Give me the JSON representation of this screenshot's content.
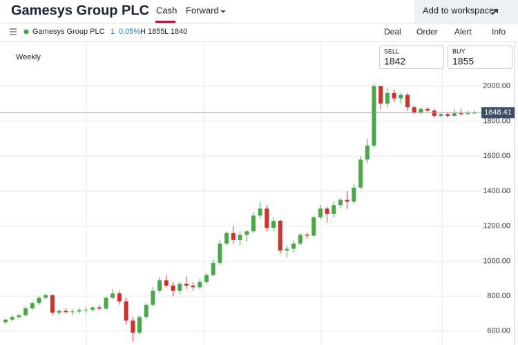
{
  "header": {
    "title": "Gamesys Group PLC",
    "tabs": [
      "Cash",
      "Forward"
    ],
    "workspace_button": "Add to workspace"
  },
  "toolbar": {
    "instrument": "Gamesys Group PLC",
    "change": "1",
    "change_pct": "0.05%",
    "high": "H 1855",
    "low": "L 1840",
    "actions": [
      "Deal",
      "Order",
      "Alert",
      "Info"
    ]
  },
  "quote": {
    "sell_label": "SELL",
    "sell": "1842",
    "buy_label": "BUY",
    "buy": "1855"
  },
  "chart_data": {
    "type": "candlestick",
    "interval": "Weekly",
    "up_color": "#4aa84a",
    "down_color": "#d0312d",
    "ylim": [
      540,
      2236
    ],
    "yticks": [
      {
        "value": 600,
        "label": "600.00"
      },
      {
        "value": 800,
        "label": "800.00"
      },
      {
        "value": 1000,
        "label": "1000.00"
      },
      {
        "value": 1200,
        "label": "1200.00"
      },
      {
        "value": 1400,
        "label": "1400.00"
      },
      {
        "value": 1600,
        "label": "1600.00"
      },
      {
        "value": 1800,
        "label": "1800.00"
      },
      {
        "value": 2000,
        "label": "2000.00"
      }
    ],
    "grid": true,
    "last_price": 1848.41,
    "ohlc": [
      [
        650,
        670,
        640,
        665
      ],
      [
        665,
        690,
        655,
        680
      ],
      [
        680,
        700,
        670,
        690
      ],
      [
        690,
        740,
        685,
        730
      ],
      [
        730,
        770,
        720,
        760
      ],
      [
        760,
        800,
        750,
        790
      ],
      [
        790,
        815,
        780,
        805
      ],
      [
        805,
        810,
        690,
        705
      ],
      [
        705,
        725,
        690,
        715
      ],
      [
        715,
        730,
        700,
        708
      ],
      [
        708,
        725,
        690,
        712
      ],
      [
        712,
        730,
        700,
        720
      ],
      [
        720,
        735,
        705,
        722
      ],
      [
        722,
        745,
        710,
        735
      ],
      [
        735,
        750,
        720,
        728
      ],
      [
        728,
        800,
        720,
        790
      ],
      [
        790,
        840,
        780,
        815
      ],
      [
        815,
        830,
        750,
        770
      ],
      [
        770,
        790,
        640,
        660
      ],
      [
        660,
        680,
        540,
        590
      ],
      [
        590,
        690,
        580,
        680
      ],
      [
        680,
        760,
        670,
        750
      ],
      [
        750,
        850,
        740,
        830
      ],
      [
        830,
        910,
        820,
        890
      ],
      [
        890,
        920,
        850,
        860
      ],
      [
        860,
        880,
        800,
        830
      ],
      [
        830,
        880,
        810,
        870
      ],
      [
        870,
        910,
        840,
        860
      ],
      [
        860,
        880,
        830,
        850
      ],
      [
        850,
        900,
        840,
        880
      ],
      [
        880,
        930,
        870,
        920
      ],
      [
        920,
        1010,
        910,
        990
      ],
      [
        990,
        1120,
        980,
        1100
      ],
      [
        1100,
        1170,
        1090,
        1160
      ],
      [
        1160,
        1200,
        1100,
        1120
      ],
      [
        1120,
        1170,
        1090,
        1150
      ],
      [
        1150,
        1180,
        1110,
        1170
      ],
      [
        1170,
        1280,
        1160,
        1260
      ],
      [
        1260,
        1340,
        1240,
        1300
      ],
      [
        1300,
        1320,
        1170,
        1190
      ],
      [
        1190,
        1250,
        1170,
        1230
      ],
      [
        1230,
        1240,
        1040,
        1060
      ],
      [
        1060,
        1090,
        1020,
        1070
      ],
      [
        1070,
        1120,
        1050,
        1100
      ],
      [
        1100,
        1160,
        1090,
        1150
      ],
      [
        1150,
        1160,
        1130,
        1145
      ],
      [
        1145,
        1260,
        1140,
        1250
      ],
      [
        1250,
        1320,
        1240,
        1300
      ],
      [
        1300,
        1310,
        1220,
        1270
      ],
      [
        1270,
        1340,
        1250,
        1320
      ],
      [
        1320,
        1360,
        1300,
        1350
      ],
      [
        1350,
        1400,
        1300,
        1340
      ],
      [
        1340,
        1440,
        1330,
        1420
      ],
      [
        1420,
        1600,
        1410,
        1580
      ],
      [
        1580,
        1700,
        1560,
        1660
      ],
      [
        1660,
        2010,
        1650,
        2000
      ],
      [
        2000,
        2000,
        1870,
        1900
      ],
      [
        1900,
        1990,
        1880,
        1960
      ],
      [
        1960,
        1980,
        1910,
        1930
      ],
      [
        1930,
        1960,
        1900,
        1950
      ],
      [
        1950,
        1960,
        1860,
        1880
      ],
      [
        1880,
        1890,
        1840,
        1850
      ],
      [
        1850,
        1880,
        1840,
        1870
      ],
      [
        1870,
        1880,
        1850,
        1860
      ],
      [
        1860,
        1870,
        1820,
        1830
      ],
      [
        1830,
        1850,
        1820,
        1840
      ],
      [
        1840,
        1850,
        1820,
        1830
      ],
      [
        1830,
        1870,
        1825,
        1845
      ],
      [
        1845,
        1870,
        1830,
        1840
      ],
      [
        1840,
        1860,
        1835,
        1845
      ],
      [
        1845,
        1860,
        1840,
        1848
      ]
    ]
  }
}
